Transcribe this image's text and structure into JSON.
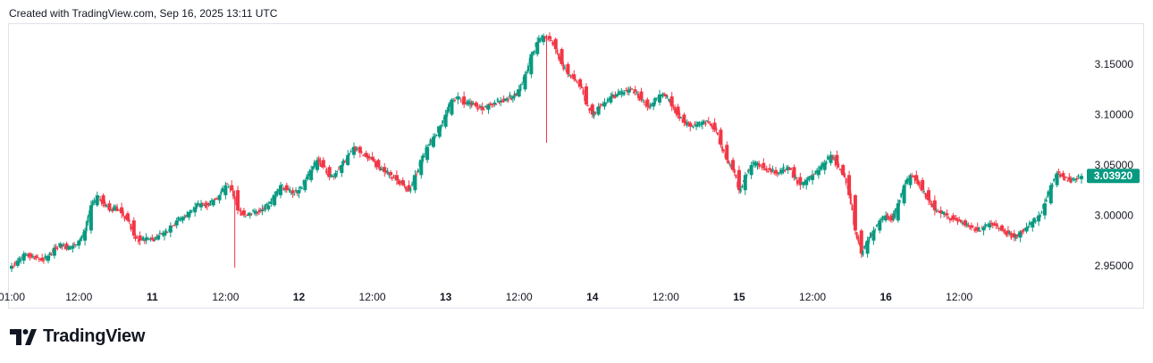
{
  "header": {
    "created_text": "Created with TradingView.com, Sep 16, 2025 13:11 UTC"
  },
  "brand": {
    "name": "TradingView",
    "logo_icon": "tradingview-logo-icon"
  },
  "colors": {
    "up": "#089981",
    "down": "#f23645",
    "badge": "#089981",
    "border": "#e0e3eb",
    "text": "#131722"
  },
  "chart_data": {
    "type": "candlestick",
    "interval_hours": 1,
    "y_ticks": [
      "3.15000",
      "3.10000",
      "3.05000",
      "3.00000",
      "2.95000"
    ],
    "ylim": [
      2.935,
      3.19
    ],
    "x_ticks": [
      {
        "label": "01:00",
        "index": 0,
        "bold": false
      },
      {
        "label": "12:00",
        "index": 11,
        "bold": false
      },
      {
        "label": "11",
        "index": 23,
        "bold": true
      },
      {
        "label": "12:00",
        "index": 35,
        "bold": false
      },
      {
        "label": "12",
        "index": 47,
        "bold": true
      },
      {
        "label": "12:00",
        "index": 59,
        "bold": false
      },
      {
        "label": "13",
        "index": 71,
        "bold": true
      },
      {
        "label": "12:00",
        "index": 83,
        "bold": false
      },
      {
        "label": "14",
        "index": 95,
        "bold": true
      },
      {
        "label": "12:00",
        "index": 107,
        "bold": false
      },
      {
        "label": "15",
        "index": 119,
        "bold": true
      },
      {
        "label": "12:00",
        "index": 131,
        "bold": false
      },
      {
        "label": "16",
        "index": 143,
        "bold": true
      },
      {
        "label": "12:00",
        "index": 155,
        "bold": false
      }
    ],
    "last_price": "3.03920",
    "closes": [
      2.95,
      2.955,
      2.962,
      2.96,
      2.958,
      2.955,
      2.96,
      2.968,
      2.972,
      2.967,
      2.97,
      2.975,
      2.985,
      3.01,
      3.02,
      3.012,
      3.005,
      3.008,
      3.002,
      2.995,
      2.98,
      2.975,
      2.978,
      2.976,
      2.98,
      2.983,
      2.99,
      2.995,
      2.998,
      3.003,
      3.008,
      3.012,
      3.01,
      3.015,
      3.02,
      3.03,
      3.025,
      3.005,
      3.0,
      3.002,
      3.004,
      3.006,
      3.01,
      3.02,
      3.03,
      3.025,
      3.022,
      3.025,
      3.035,
      3.045,
      3.055,
      3.048,
      3.038,
      3.042,
      3.05,
      3.06,
      3.068,
      3.062,
      3.058,
      3.055,
      3.048,
      3.043,
      3.04,
      3.035,
      3.03,
      3.025,
      3.04,
      3.055,
      3.068,
      3.078,
      3.088,
      3.1,
      3.115,
      3.118,
      3.11,
      3.112,
      3.108,
      3.105,
      3.11,
      3.112,
      3.114,
      3.116,
      3.118,
      3.125,
      3.14,
      3.16,
      3.172,
      3.178,
      3.175,
      3.165,
      3.15,
      3.14,
      3.135,
      3.128,
      3.11,
      3.1,
      3.108,
      3.112,
      3.118,
      3.12,
      3.122,
      3.125,
      3.123,
      3.115,
      3.108,
      3.112,
      3.12,
      3.118,
      3.108,
      3.1,
      3.092,
      3.088,
      3.09,
      3.093,
      3.092,
      3.085,
      3.07,
      3.055,
      3.045,
      3.025,
      3.04,
      3.05,
      3.052,
      3.047,
      3.045,
      3.042,
      3.045,
      3.048,
      3.038,
      3.03,
      3.035,
      3.04,
      3.045,
      3.052,
      3.06,
      3.05,
      3.04,
      3.02,
      2.985,
      2.962,
      2.975,
      2.985,
      2.995,
      3.0,
      2.995,
      3.012,
      3.03,
      3.04,
      3.035,
      3.025,
      3.015,
      3.005,
      3.002,
      3.0,
      2.996,
      2.995,
      2.99,
      2.988,
      2.985,
      2.988,
      2.992,
      2.99,
      2.985,
      2.982,
      2.978,
      2.984,
      2.988,
      2.994,
      3.0,
      3.012,
      3.03,
      3.042,
      3.038,
      3.035,
      3.036,
      3.0392
    ]
  }
}
